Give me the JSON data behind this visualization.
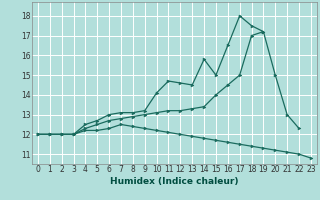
{
  "xlabel": "Humidex (Indice chaleur)",
  "background_color": "#b2dfdb",
  "grid_color": "#ffffff",
  "line_color": "#1a6b5e",
  "x_values": [
    0,
    1,
    2,
    3,
    4,
    5,
    6,
    7,
    8,
    9,
    10,
    11,
    12,
    13,
    14,
    15,
    16,
    17,
    18,
    19,
    20,
    21,
    22,
    23
  ],
  "series1_y": [
    12,
    12,
    12,
    12,
    12.3,
    12.5,
    12.7,
    12.8,
    12.9,
    13.0,
    13.1,
    13.2,
    13.2,
    13.3,
    13.4,
    14.0,
    14.5,
    15.0,
    17.0,
    17.2,
    null,
    null,
    null,
    null
  ],
  "series2_y": [
    12,
    12,
    12,
    12,
    12.5,
    12.7,
    13.0,
    13.1,
    13.1,
    13.2,
    14.1,
    14.7,
    14.6,
    14.5,
    15.8,
    15.0,
    16.5,
    18.0,
    17.5,
    17.2,
    15.0,
    13.0,
    12.3,
    null
  ],
  "series3_y": [
    12,
    12,
    12,
    12,
    12.2,
    12.2,
    12.3,
    12.5,
    12.4,
    12.3,
    12.2,
    12.1,
    12.0,
    11.9,
    11.8,
    11.7,
    11.6,
    11.5,
    11.4,
    11.3,
    11.2,
    11.1,
    11.0,
    10.8
  ],
  "ylim": [
    10.5,
    18.7
  ],
  "xlim": [
    -0.5,
    23.5
  ],
  "yticks": [
    11,
    12,
    13,
    14,
    15,
    16,
    17,
    18
  ],
  "xticks": [
    0,
    1,
    2,
    3,
    4,
    5,
    6,
    7,
    8,
    9,
    10,
    11,
    12,
    13,
    14,
    15,
    16,
    17,
    18,
    19,
    20,
    21,
    22,
    23
  ],
  "tick_fontsize": 5.5,
  "xlabel_fontsize": 6.5
}
